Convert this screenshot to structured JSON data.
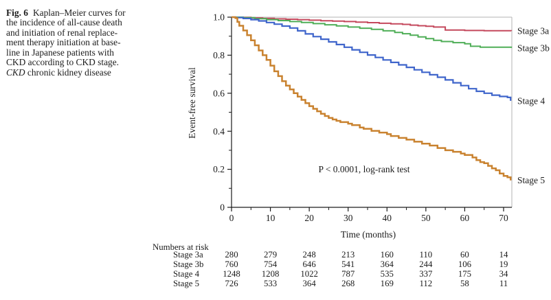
{
  "figure": {
    "caption": {
      "fig_label": "Fig. 6",
      "lines": [
        "Kaplan–Meier curves for",
        "the incidence of all-cause death",
        "and initiation of renal replace-",
        "ment therapy initiation at base-",
        "line in Japanese patients with",
        "CKD according to CKD stage."
      ],
      "abbrev": "CKD",
      "abbrev_definition": " chronic kidney disease"
    }
  },
  "chart_data": {
    "type": "line",
    "subtype": "kaplan-meier-step",
    "title": "",
    "xlabel": "Time  (months)",
    "ylabel": "Event-free survival",
    "annotation": "P < 0.0001, log-rank test",
    "grid": false,
    "legend_position": "right-of-curve-ends",
    "xlim": [
      0,
      72.2
    ],
    "ylim": [
      0,
      1.0
    ],
    "x_major_ticks": [
      0,
      10,
      20,
      30,
      40,
      50,
      60,
      70
    ],
    "x_minor_ticks": [
      5,
      15,
      25,
      35,
      45,
      55,
      65
    ],
    "y_tick_values": [
      0,
      0.2,
      0.4,
      0.6,
      0.8,
      1.0
    ],
    "y_tick_labels": [
      "0",
      "0.2",
      "0.4",
      "0.6",
      "0.8",
      "1.0"
    ],
    "y_minor_ticks": [
      0.1,
      0.3,
      0.5,
      0.7,
      0.9
    ],
    "axis_color": "#1a1a1a",
    "frame_color": "#b3b3b3",
    "series": [
      {
        "name": "Stage 3a",
        "color": "#c4485c",
        "stroke_width": 2.0,
        "points": [
          [
            0,
            1.0
          ],
          [
            2,
            0.999
          ],
          [
            5,
            0.996
          ],
          [
            8,
            0.994
          ],
          [
            11,
            0.991
          ],
          [
            14,
            0.989
          ],
          [
            17,
            0.987
          ],
          [
            20,
            0.984
          ],
          [
            23,
            0.981
          ],
          [
            26,
            0.979
          ],
          [
            29,
            0.977
          ],
          [
            32,
            0.974
          ],
          [
            35,
            0.971
          ],
          [
            38,
            0.968
          ],
          [
            41,
            0.965
          ],
          [
            44,
            0.962
          ],
          [
            46,
            0.958
          ],
          [
            48,
            0.955
          ],
          [
            50,
            0.952
          ],
          [
            52,
            0.948
          ],
          [
            55,
            0.932
          ],
          [
            60,
            0.93
          ],
          [
            65,
            0.929
          ],
          [
            72,
            0.928
          ]
        ]
      },
      {
        "name": "Stage 3b",
        "color": "#4fae57",
        "stroke_width": 2.0,
        "points": [
          [
            0,
            1.0
          ],
          [
            3,
            0.997
          ],
          [
            6,
            0.992
          ],
          [
            9,
            0.987
          ],
          [
            12,
            0.982
          ],
          [
            15,
            0.977
          ],
          [
            18,
            0.972
          ],
          [
            21,
            0.966
          ],
          [
            24,
            0.96
          ],
          [
            27,
            0.954
          ],
          [
            30,
            0.948
          ],
          [
            33,
            0.942
          ],
          [
            36,
            0.936
          ],
          [
            39,
            0.928
          ],
          [
            42,
            0.92
          ],
          [
            44,
            0.913
          ],
          [
            46,
            0.905
          ],
          [
            48,
            0.896
          ],
          [
            50,
            0.887
          ],
          [
            52,
            0.878
          ],
          [
            54,
            0.872
          ],
          [
            57,
            0.866
          ],
          [
            60,
            0.86
          ],
          [
            61.5,
            0.847
          ],
          [
            64,
            0.842
          ],
          [
            72,
            0.838
          ]
        ]
      },
      {
        "name": "Stage 4",
        "color": "#3f65cb",
        "stroke_width": 2.2,
        "points": [
          [
            0,
            1.0
          ],
          [
            1,
            0.998
          ],
          [
            3,
            0.993
          ],
          [
            5,
            0.987
          ],
          [
            7,
            0.98
          ],
          [
            9,
            0.972
          ],
          [
            11,
            0.963
          ],
          [
            13,
            0.953
          ],
          [
            15,
            0.943
          ],
          [
            17,
            0.928
          ],
          [
            19,
            0.912
          ],
          [
            21,
            0.898
          ],
          [
            23,
            0.884
          ],
          [
            25,
            0.87
          ],
          [
            27,
            0.856
          ],
          [
            29,
            0.842
          ],
          [
            31,
            0.828
          ],
          [
            33,
            0.815
          ],
          [
            35,
            0.801
          ],
          [
            37,
            0.788
          ],
          [
            39,
            0.775
          ],
          [
            41,
            0.762
          ],
          [
            43,
            0.749
          ],
          [
            45,
            0.736
          ],
          [
            47,
            0.723
          ],
          [
            49,
            0.71
          ],
          [
            51,
            0.697
          ],
          [
            53,
            0.684
          ],
          [
            55,
            0.67
          ],
          [
            57,
            0.655
          ],
          [
            59,
            0.64
          ],
          [
            61,
            0.624
          ],
          [
            63,
            0.61
          ],
          [
            65,
            0.6
          ],
          [
            67,
            0.59
          ],
          [
            69,
            0.583
          ],
          [
            71,
            0.578
          ],
          [
            71.8,
            0.56
          ]
        ]
      },
      {
        "name": "Stage 5",
        "color": "#c9822f",
        "stroke_width": 2.5,
        "points": [
          [
            0,
            1.0
          ],
          [
            1,
            0.995
          ],
          [
            1.5,
            0.975
          ],
          [
            2,
            0.955
          ],
          [
            3,
            0.93
          ],
          [
            4,
            0.905
          ],
          [
            5,
            0.878
          ],
          [
            6,
            0.852
          ],
          [
            7,
            0.825
          ],
          [
            8,
            0.8
          ],
          [
            9,
            0.775
          ],
          [
            10,
            0.745
          ],
          [
            11,
            0.715
          ],
          [
            12,
            0.69
          ],
          [
            13,
            0.663
          ],
          [
            14,
            0.64
          ],
          [
            15,
            0.62
          ],
          [
            16,
            0.6
          ],
          [
            17,
            0.582
          ],
          [
            18,
            0.565
          ],
          [
            19,
            0.548
          ],
          [
            20,
            0.532
          ],
          [
            21,
            0.518
          ],
          [
            22,
            0.505
          ],
          [
            23,
            0.492
          ],
          [
            24,
            0.48
          ],
          [
            25,
            0.47
          ],
          [
            26,
            0.462
          ],
          [
            27,
            0.455
          ],
          [
            28,
            0.448
          ],
          [
            30,
            0.44
          ],
          [
            31,
            0.432
          ],
          [
            33,
            0.42
          ],
          [
            34,
            0.413
          ],
          [
            36,
            0.402
          ],
          [
            38,
            0.393
          ],
          [
            40,
            0.385
          ],
          [
            41,
            0.375
          ],
          [
            43,
            0.365
          ],
          [
            45,
            0.356
          ],
          [
            47,
            0.345
          ],
          [
            49,
            0.335
          ],
          [
            51,
            0.325
          ],
          [
            53,
            0.312
          ],
          [
            55,
            0.3
          ],
          [
            57,
            0.292
          ],
          [
            59,
            0.283
          ],
          [
            60,
            0.275
          ],
          [
            62,
            0.262
          ],
          [
            63,
            0.248
          ],
          [
            64,
            0.238
          ],
          [
            65,
            0.232
          ],
          [
            66,
            0.218
          ],
          [
            67,
            0.205
          ],
          [
            68,
            0.195
          ],
          [
            69,
            0.178
          ],
          [
            70,
            0.165
          ],
          [
            71,
            0.158
          ],
          [
            71.8,
            0.142
          ]
        ]
      }
    ],
    "risk_table": {
      "title": "Numbers at risk",
      "time_points": [
        0,
        10,
        20,
        30,
        40,
        50,
        60,
        70
      ],
      "rows": [
        {
          "name": "Stage 3a",
          "values": [
            280,
            279,
            248,
            213,
            160,
            110,
            60,
            14
          ]
        },
        {
          "name": "Stage 3b",
          "values": [
            760,
            754,
            646,
            541,
            364,
            244,
            106,
            19
          ]
        },
        {
          "name": "Stage 4",
          "values": [
            1248,
            1208,
            1022,
            787,
            535,
            337,
            175,
            34
          ]
        },
        {
          "name": "Stage 5",
          "values": [
            726,
            533,
            364,
            268,
            169,
            112,
            58,
            11
          ]
        }
      ]
    }
  }
}
